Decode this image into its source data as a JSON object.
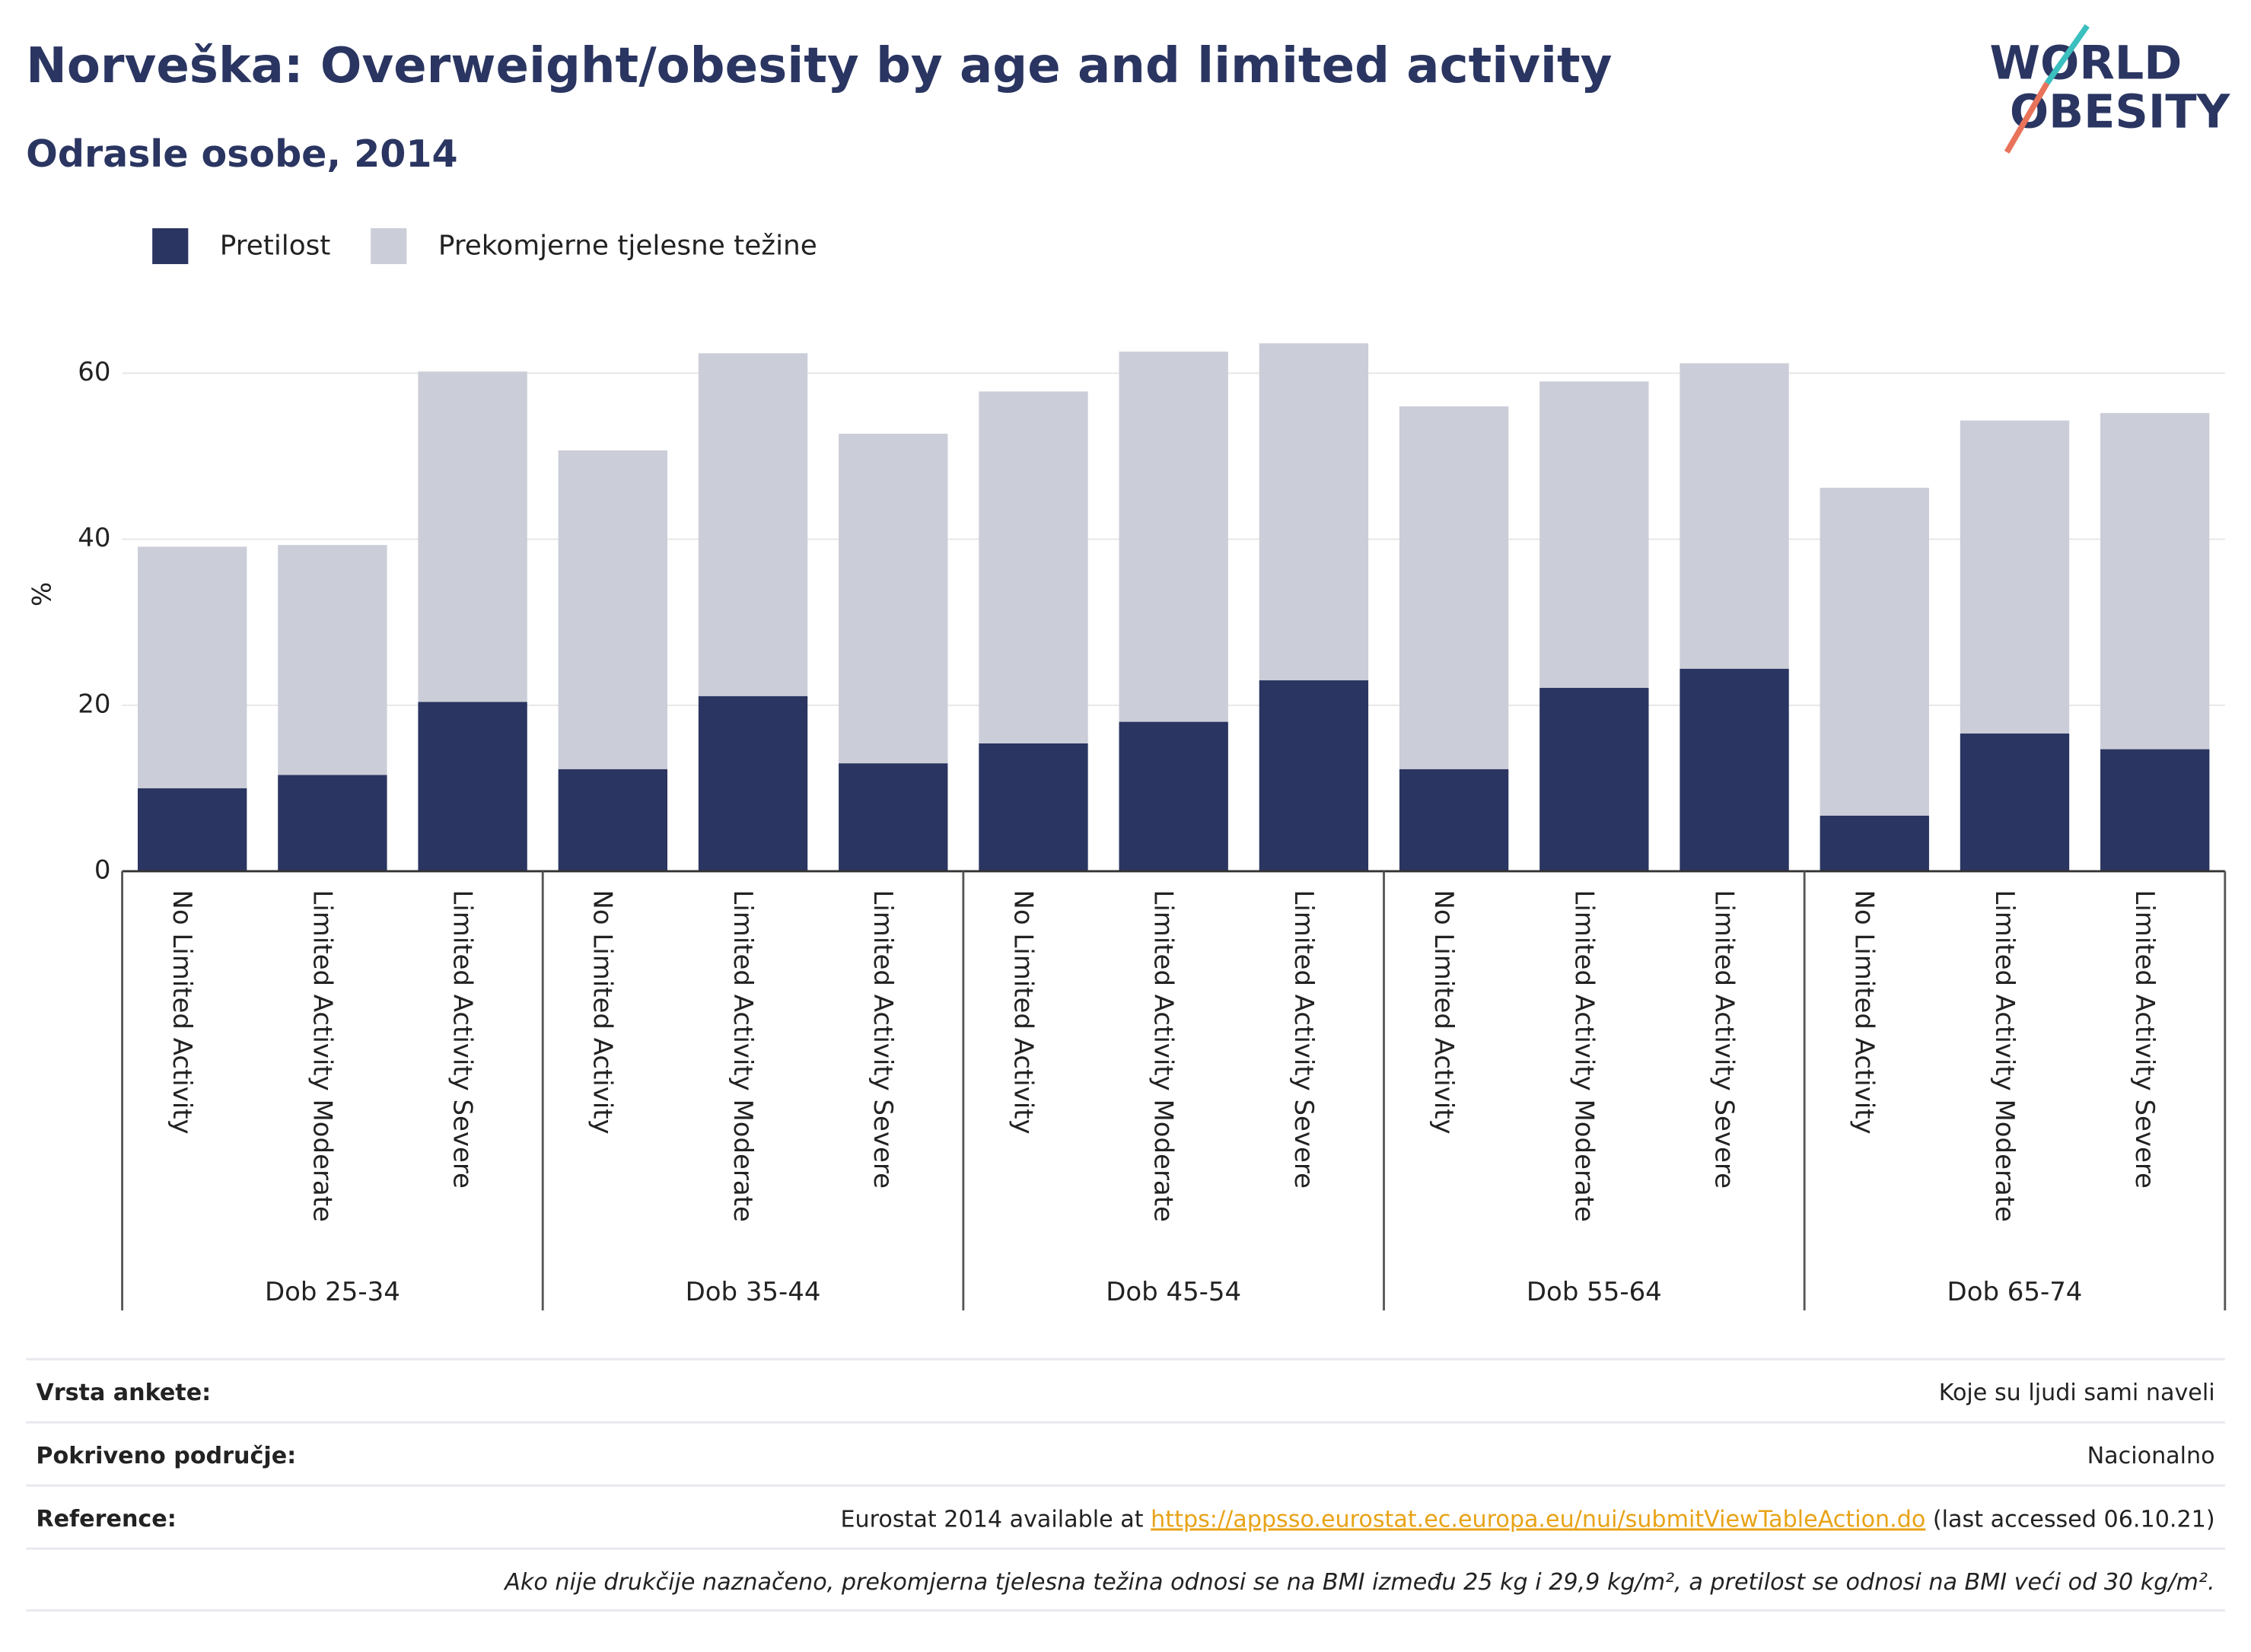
{
  "chart_data": {
    "type": "stacked_bar",
    "title": "Norveška: Overweight/obesity by age and limited activity",
    "subtitle": "Odrasle osobe, 2014",
    "y_label": "%",
    "categories": [
      "No Limited Activity",
      "Limited Activity Moderate",
      "Limited Activity Severe",
      "No Limited Activity",
      "Limited Activity Moderate",
      "Limited Activity Severe",
      "No Limited Activity",
      "Limited Activity Moderate",
      "Limited Activity Severe",
      "No Limited Activity",
      "Limited Activity Moderate",
      "Limited Activity Severe",
      "No Limited Activity",
      "Limited Activity Moderate",
      "Limited Activity Severe"
    ],
    "groups": [
      "Dob 25-34",
      "Dob 35-44",
      "Dob 45-54",
      "Dob 55-64",
      "Dob 65-74"
    ],
    "series": [
      {
        "name": "Pretilost",
        "color": "#2a3561",
        "values": [
          10.0,
          11.6,
          20.4,
          12.3,
          21.1,
          13.0,
          15.4,
          18.0,
          23.0,
          12.3,
          22.1,
          24.4,
          6.7,
          16.6,
          14.7
        ]
      },
      {
        "name": "Prekomjerne tjelesne težine",
        "color": "#cbcdd8",
        "values": [
          29.1,
          27.7,
          39.8,
          38.4,
          41.3,
          39.7,
          42.4,
          44.6,
          40.6,
          43.7,
          36.9,
          36.8,
          39.5,
          37.7,
          40.5
        ]
      }
    ],
    "ylim": [
      0,
      65
    ],
    "yticks": [
      0,
      20,
      40,
      60
    ],
    "grid": true,
    "legend": "top-left"
  },
  "logo": {
    "line1": "WORLD",
    "line2": "OBESITY"
  },
  "footer": {
    "rows": [
      {
        "label": "Vrsta ankete:",
        "value": "Koje su ljudi sami naveli"
      },
      {
        "label": "Pokriveno područje:",
        "value": "Nacionalno"
      }
    ],
    "reference": {
      "label": "Reference:",
      "text": "Eurostat 2014 available at ",
      "link": "https://appsso.eurostat.ec.europa.eu/nui/submitViewTableAction.do",
      "suffix": " (last accessed 06.10.21)"
    },
    "note": "Ako nije drukčije naznačeno, prekomjerna tjelesna težina odnosi se na BMI između 25 kg i 29,9 kg/m², a pretilost se odnosi na BMI veći od 30 kg/m²."
  }
}
